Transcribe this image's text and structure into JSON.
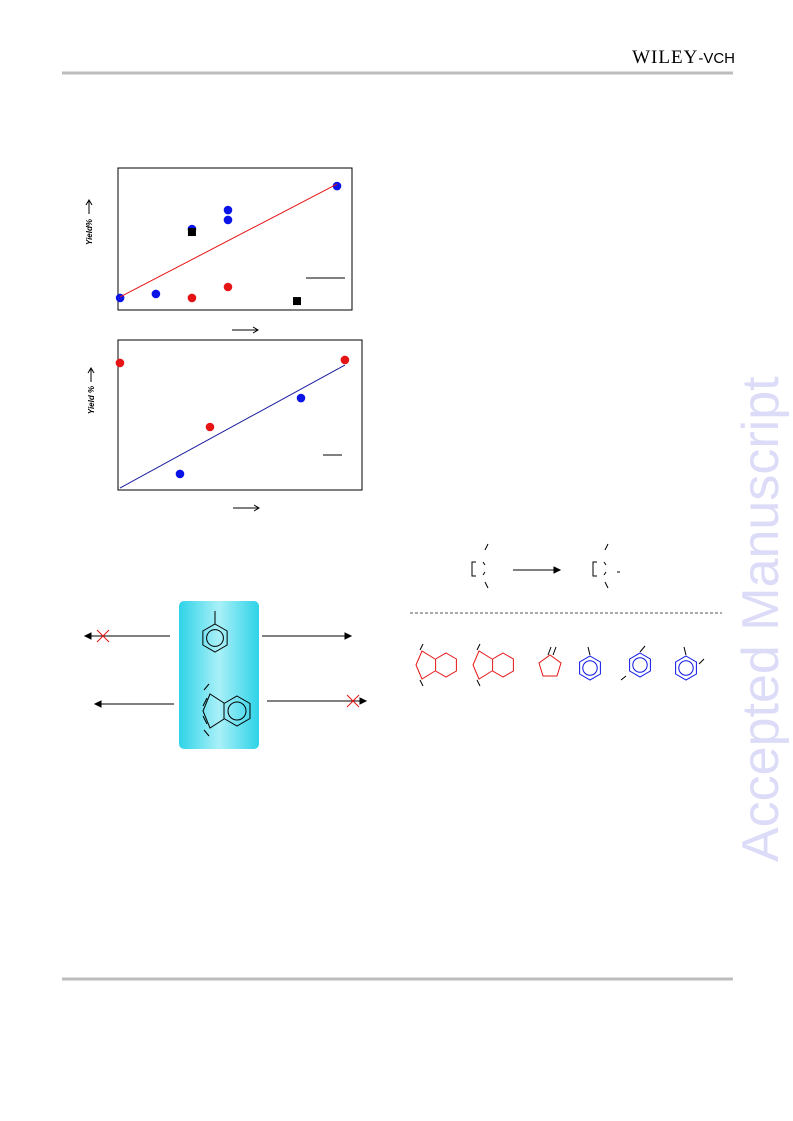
{
  "header": {
    "publisher": "WILEY",
    "publisher_suffix": "-VCH"
  },
  "watermark": "Accepted Manuscript",
  "chart_data": [
    {
      "type": "scatter",
      "y_label": "Yield%",
      "xlim": [
        0,
        100
      ],
      "ylim": [
        0,
        100
      ],
      "series": [
        {
          "color": "#0a14e6",
          "marker": "circle",
          "x": [
            0.9,
            16.2,
            31.6,
            47.0,
            47.0,
            93.6
          ],
          "y": [
            8.5,
            11.3,
            57.0,
            70.4,
            63.4,
            87.3
          ]
        },
        {
          "color": "#e61414",
          "marker": "circle",
          "x": [
            31.6,
            47.0
          ],
          "y": [
            8.5,
            16.2
          ]
        },
        {
          "color": "#000000",
          "marker": "square",
          "x": [
            31.6,
            76.5
          ],
          "y": [
            54.9,
            6.3
          ]
        },
        {
          "color": "#e61414",
          "marker": "line",
          "x": [
            0.9,
            93.6
          ],
          "y": [
            9.2,
            88.7
          ]
        }
      ]
    },
    {
      "type": "scatter",
      "y_label": "Yield %",
      "xlim": [
        0,
        100
      ],
      "ylim": [
        0,
        100
      ],
      "series": [
        {
          "color": "#e61414",
          "marker": "circle",
          "x": [
            0.8,
            37.7,
            93.0
          ],
          "y": [
            84.7,
            42.0,
            86.7
          ]
        },
        {
          "color": "#0a14e6",
          "marker": "circle",
          "x": [
            25.4,
            75.0
          ],
          "y": [
            10.7,
            61.3
          ]
        },
        {
          "color": "#1a1aa0",
          "marker": "line",
          "x": [
            0.8,
            93.0
          ],
          "y": [
            1.3,
            83.3
          ]
        }
      ]
    }
  ]
}
